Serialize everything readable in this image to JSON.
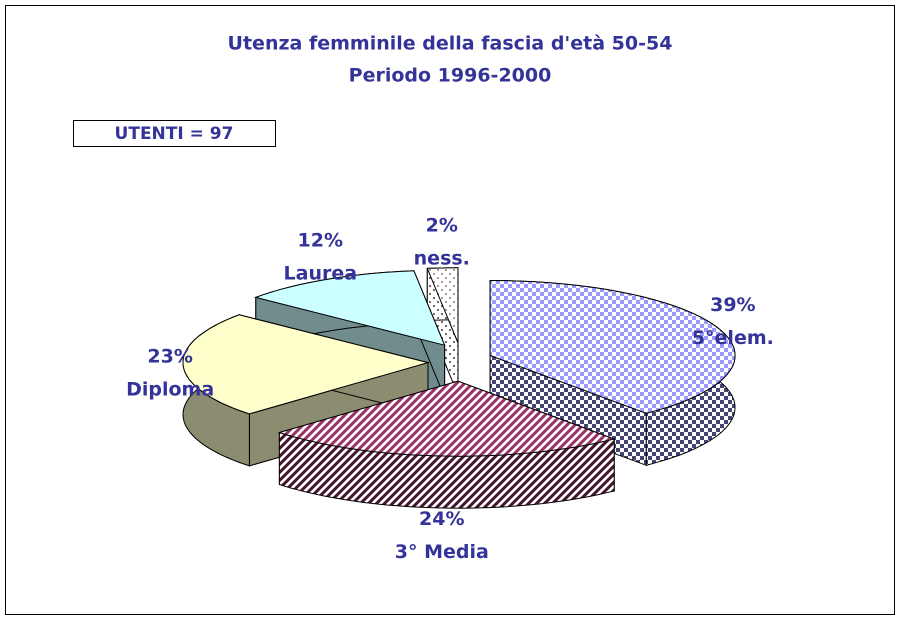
{
  "chart_data": {
    "type": "pie",
    "title": "Utenza femminile della fascia d'età 50-54",
    "subtitle": "Periodo 1996-2000",
    "annotation": "UTENTI = 97",
    "categories": [
      "5°elem.",
      "3° Media",
      "Diploma",
      "Laurea",
      "ness."
    ],
    "values": [
      39,
      24,
      23,
      12,
      2
    ],
    "value_labels": [
      "39%",
      "24%",
      "23%",
      "12%",
      "2%"
    ],
    "colors": [
      "#9999ff",
      "#993366",
      "#ffffcc",
      "#ccffff",
      "#ffcccc"
    ],
    "fill_styles": [
      "checker",
      "stripes",
      "solid",
      "solid",
      "dots"
    ]
  }
}
